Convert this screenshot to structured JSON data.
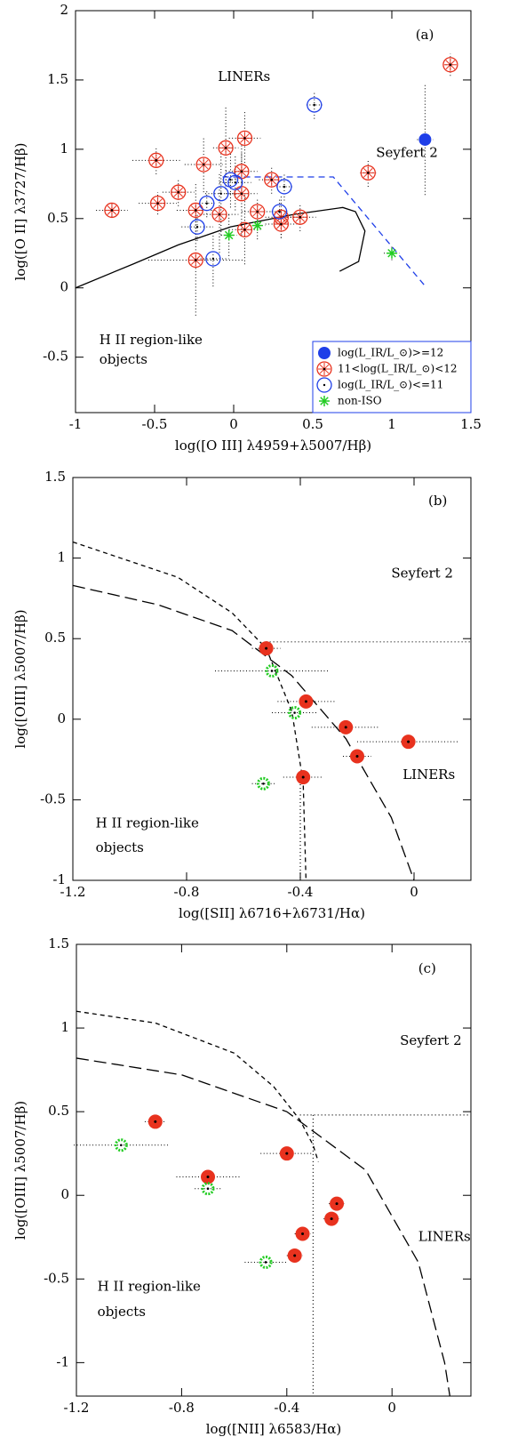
{
  "chart_data": [
    {
      "type": "scatter",
      "label": "(a)",
      "x_label": "log([O III] λ4959+λ5007/Hβ)",
      "y_label": "log([O II] λ3727/Hβ)",
      "xlim": [
        -1,
        1.5
      ],
      "ylim": [
        -0.9,
        2
      ],
      "xticks": [
        -1,
        -0.5,
        0,
        0.5,
        1,
        1.5
      ],
      "yticks": [
        -0.5,
        0,
        0.5,
        1,
        1.5,
        2
      ],
      "legend": "lower right",
      "series": [
        {
          "name": "log(L_IR/L_⊙)>=12",
          "color": "#1f3fe8",
          "marker": "filled-circle",
          "x": [
            1.21
          ],
          "y": [
            1.07
          ],
          "xerr": [
            0.05
          ],
          "yerr": [
            0.4
          ]
        },
        {
          "name": "11<log(L_IR/L_⊙)<12",
          "color": "#e8321e",
          "marker": "starred-circle",
          "x": [
            -0.49,
            -0.19,
            -0.05,
            0.07,
            0.05,
            0.05,
            -0.24,
            -0.09,
            -0.24,
            0.07,
            0.15,
            0.24,
            0.3,
            0.3,
            0.42,
            -0.77,
            -0.48,
            -0.35,
            0.85,
            1.37
          ],
          "y": [
            0.92,
            0.89,
            1.01,
            1.08,
            0.84,
            0.68,
            0.56,
            0.53,
            0.2,
            0.42,
            0.55,
            0.78,
            0.51,
            0.46,
            0.51,
            0.56,
            0.61,
            0.69,
            0.83,
            1.61
          ],
          "xerr": [
            0.15,
            0.12,
            0.08,
            0.1,
            0.1,
            0.1,
            0.12,
            0.12,
            0.3,
            0.1,
            0.1,
            0.08,
            0.1,
            0.1,
            0.1,
            0.1,
            0.12,
            0.1,
            0.05,
            0.03
          ],
          "yerr": [
            0.1,
            0.2,
            0.3,
            0.2,
            0.2,
            0.3,
            0.2,
            0.3,
            0.4,
            0.25,
            0.1,
            0.1,
            0.15,
            0.1,
            0.1,
            0.05,
            0.08,
            0.1,
            0.1,
            0.08
          ]
        },
        {
          "name": "log(L_IR/L_⊙)<=11",
          "color": "#1f3fe8",
          "marker": "open-circle",
          "x": [
            0.51,
            -0.02,
            0.01,
            -0.08,
            -0.17,
            -0.23,
            -0.13,
            0.32,
            0.29
          ],
          "y": [
            1.32,
            0.78,
            0.76,
            0.68,
            0.61,
            0.44,
            0.21,
            0.73,
            0.55
          ],
          "xerr": [
            0.05,
            0.05,
            0.1,
            0.1,
            0.05,
            0.1,
            0.1,
            0.05,
            0.05
          ],
          "yerr": [
            0.1,
            0.2,
            0.2,
            0.3,
            0.1,
            0.1,
            0.2,
            0.1,
            0.1
          ]
        },
        {
          "name": "non-ISO",
          "color": "#22cc22",
          "marker": "asterisk",
          "x": [
            -0.03,
            0.15,
            1.0
          ],
          "y": [
            0.38,
            0.45,
            0.25
          ],
          "xerr": [
            0.05,
            0.05,
            0.05
          ],
          "yerr": [
            0.15,
            0.1,
            0.05
          ]
        }
      ],
      "lines": [
        {
          "color": "#000000",
          "style": "solid",
          "x": [
            -1,
            -0.64,
            -0.35,
            -0.02,
            0.38,
            0.69,
            0.77,
            0.83,
            0.79,
            0.67
          ],
          "y": [
            0,
            0.17,
            0.31,
            0.44,
            0.53,
            0.58,
            0.55,
            0.41,
            0.19,
            0.12
          ]
        },
        {
          "color": "#1f3fe8",
          "style": "dashed",
          "x": [
            -0.07,
            0.63,
            1.22
          ],
          "y": [
            0.8,
            0.8,
            0
          ]
        }
      ],
      "annotations": [
        {
          "text": "(a)",
          "x": 1.15,
          "y": 1.82,
          "color": "#1f3fe8"
        },
        {
          "text": "LINERs",
          "x": -0.1,
          "y": 1.52,
          "color": "#1f3fe8"
        },
        {
          "text": "Seyfert 2",
          "x": 0.9,
          "y": 0.97,
          "color": "#1f3fe8"
        },
        {
          "text": "H II region-like",
          "x": -0.85,
          "y": -0.38,
          "color": "#1f3fe8"
        },
        {
          "text": "objects",
          "x": -0.85,
          "y": -0.52,
          "color": "#1f3fe8"
        }
      ]
    },
    {
      "type": "scatter",
      "label": "(b)",
      "x_label": "log([SII] λ6716+λ6731/Hα)",
      "y_label": "log([OIII] λ5007/Hβ)",
      "xlim": [
        -1.2,
        0.2
      ],
      "ylim": [
        -1,
        1.5
      ],
      "xticks": [
        -1.2,
        -0.8,
        -0.4,
        0
      ],
      "yticks": [
        -1,
        -0.5,
        0,
        0.5,
        1,
        1.5
      ],
      "series": [
        {
          "color": "#e8321e",
          "marker": "filled-dot",
          "x": [
            -0.52,
            -0.38,
            -0.24,
            -0.02,
            -0.2,
            -0.39
          ],
          "y": [
            0.44,
            0.11,
            -0.05,
            -0.14,
            -0.23,
            -0.36
          ],
          "xerr": [
            0.05,
            0.1,
            0.12,
            0.18,
            0.05,
            0.07
          ]
        },
        {
          "color": "#22cc22",
          "marker": "ring",
          "x": [
            -0.5,
            -0.42,
            -0.53
          ],
          "y": [
            0.3,
            0.04,
            -0.4
          ],
          "xerr": [
            0.2,
            0.08,
            0.04
          ]
        }
      ],
      "lines": [
        {
          "color": "#000000",
          "style": "short-dash",
          "x": [
            -1.2,
            -0.83,
            -0.64,
            -0.52,
            -0.43,
            -0.39,
            -0.38
          ],
          "y": [
            1.1,
            0.88,
            0.66,
            0.44,
            0.05,
            -0.39,
            -1
          ]
        },
        {
          "color": "#000000",
          "style": "long-dash",
          "x": [
            -1.2,
            -0.9,
            -0.64,
            -0.43,
            -0.24,
            -0.08,
            0
          ],
          "y": [
            0.83,
            0.71,
            0.55,
            0.27,
            -0.12,
            -0.61,
            -1
          ]
        },
        {
          "color": "#000000",
          "style": "dotted",
          "x": [
            -0.52,
            0.2
          ],
          "y": [
            0.48,
            0.48
          ]
        },
        {
          "color": "#000000",
          "style": "dotted",
          "x": [
            -0.4,
            -0.4
          ],
          "y": [
            -0.36,
            -1
          ]
        }
      ],
      "annotations": [
        {
          "text": "(b)",
          "x": 0.05,
          "y": 1.35,
          "color": "#1f3fe8"
        },
        {
          "text": "Seyfert 2",
          "x": -0.08,
          "y": 0.9,
          "color": "#1f3fe8"
        },
        {
          "text": "LINERs",
          "x": -0.04,
          "y": -0.35,
          "color": "#1f3fe8"
        },
        {
          "text": "H II region-like",
          "x": -1.12,
          "y": -0.65,
          "color": "#1f3fe8"
        },
        {
          "text": "objects",
          "x": -1.12,
          "y": -0.8,
          "color": "#1f3fe8"
        }
      ]
    },
    {
      "type": "scatter",
      "label": "(c)",
      "x_label": "log([NII] λ6583/Hα)",
      "y_label": "log([OIII] λ5007/Hβ)",
      "xlim": [
        -1.2,
        0.3
      ],
      "ylim": [
        -1.2,
        1.5
      ],
      "xticks": [
        -1.2,
        -0.8,
        -0.4,
        0
      ],
      "yticks": [
        -1,
        -0.5,
        0,
        0.5,
        1,
        1.5
      ],
      "series": [
        {
          "color": "#e8321e",
          "marker": "filled-dot",
          "x": [
            -0.9,
            -0.7,
            -0.4,
            -0.21,
            -0.23,
            -0.34,
            -0.37
          ],
          "y": [
            0.44,
            0.11,
            0.25,
            -0.05,
            -0.14,
            -0.23,
            -0.36
          ],
          "xerr": [
            0.04,
            0.12,
            0.1,
            0.03,
            0.03,
            0.03,
            0.03
          ]
        },
        {
          "color": "#22cc22",
          "marker": "ring",
          "x": [
            -1.03,
            -0.7,
            -0.48
          ],
          "y": [
            0.3,
            0.04,
            -0.4
          ],
          "xerr": [
            0.18,
            0.05,
            0.08
          ]
        }
      ],
      "lines": [
        {
          "color": "#000000",
          "style": "short-dash",
          "x": [
            -1.2,
            -0.9,
            -0.6,
            -0.45,
            -0.35,
            -0.3,
            -0.28
          ],
          "y": [
            1.1,
            1.03,
            0.85,
            0.65,
            0.45,
            0.3,
            0.2
          ]
        },
        {
          "color": "#000000",
          "style": "long-dash",
          "x": [
            -1.2,
            -0.8,
            -0.4,
            -0.1,
            0.1,
            0.2,
            0.22
          ],
          "y": [
            0.82,
            0.72,
            0.5,
            0.15,
            -0.4,
            -1,
            -1.2
          ]
        },
        {
          "color": "#000000",
          "style": "dotted",
          "x": [
            -0.35,
            0.3
          ],
          "y": [
            0.48,
            0.48
          ]
        },
        {
          "color": "#000000",
          "style": "dotted",
          "x": [
            -0.3,
            -0.3
          ],
          "y": [
            0.48,
            -1.2
          ]
        }
      ],
      "annotations": [
        {
          "text": "(c)",
          "x": 0.1,
          "y": 1.35,
          "color": "#1f3fe8"
        },
        {
          "text": "Seyfert 2",
          "x": 0.03,
          "y": 0.92,
          "color": "#1f3fe8"
        },
        {
          "text": "LINERs",
          "x": 0.1,
          "y": -0.25,
          "color": "#1f3fe8"
        },
        {
          "text": "H II region-like",
          "x": -1.12,
          "y": -0.55,
          "color": "#1f3fe8"
        },
        {
          "text": "objects",
          "x": -1.12,
          "y": -0.7,
          "color": "#1f3fe8"
        }
      ]
    }
  ]
}
